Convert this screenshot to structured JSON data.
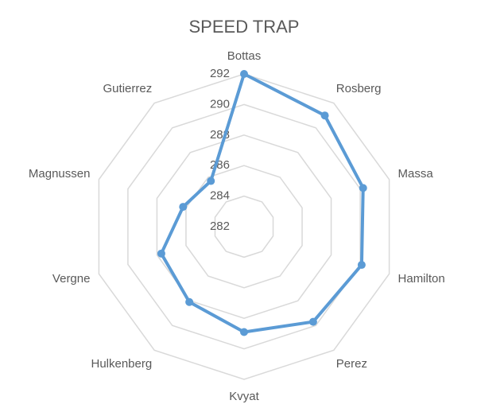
{
  "chart_data": {
    "type": "radar",
    "title": "SPEED TRAP",
    "categories": [
      "Bottas",
      "Rosberg",
      "Massa",
      "Hamilton",
      "Perez",
      "Kvyat",
      "Hulkenberg",
      "Vergne",
      "Magnussen",
      "Gutierrez"
    ],
    "values": [
      292,
      291,
      290.2,
      290.1,
      289.7,
      288.9,
      288.1,
      287.7,
      286.2,
      285.7
    ],
    "color": "#5b9bd5",
    "ylim": [
      282,
      292
    ],
    "yticks": [
      282,
      284,
      286,
      288,
      290,
      292
    ],
    "grid": true
  }
}
